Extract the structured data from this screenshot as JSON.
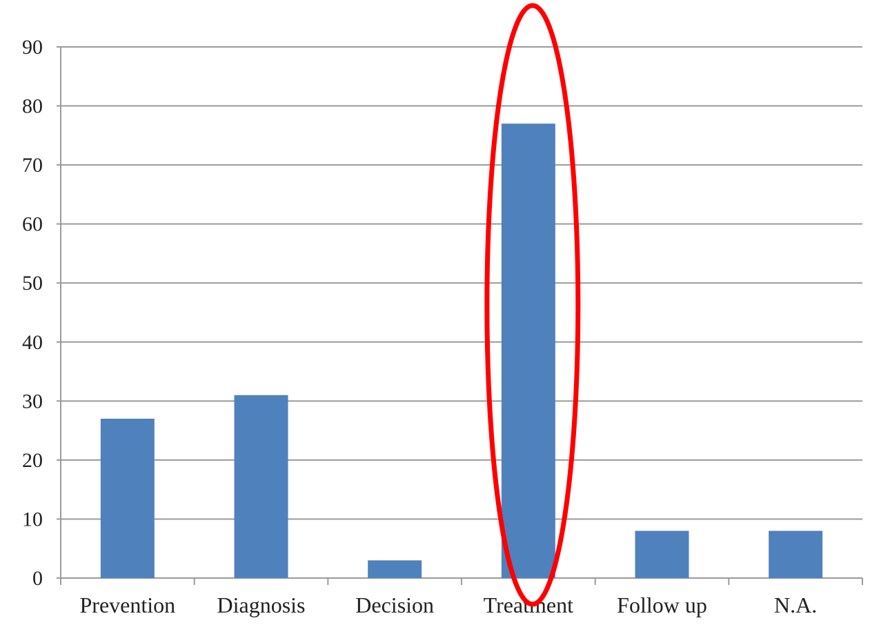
{
  "chart_data": {
    "type": "bar",
    "categories": [
      "Prevention",
      "Diagnosis",
      "Decision",
      "Treatment",
      "Follow up",
      "N.A."
    ],
    "values": [
      27,
      31,
      3,
      77,
      8,
      8
    ],
    "title": "",
    "xlabel": "",
    "ylabel": "",
    "ylim": [
      0,
      90
    ],
    "yticks": [
      "0",
      "10",
      "20",
      "30",
      "40",
      "50",
      "60",
      "70",
      "80",
      "90"
    ],
    "grid": true,
    "legend": "none",
    "bar_color": "#4f81bd",
    "annotation": {
      "type": "ellipse",
      "target_category": "Treatment",
      "color": "#ff0000"
    }
  }
}
